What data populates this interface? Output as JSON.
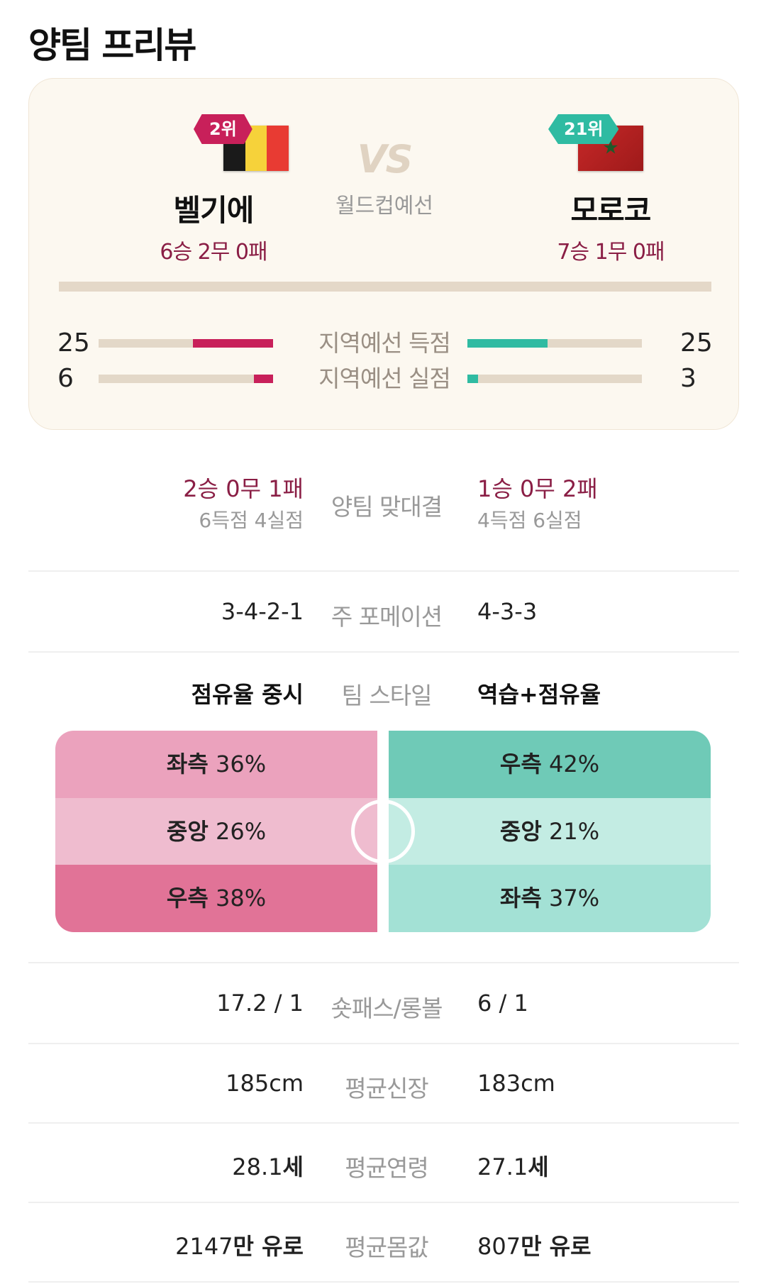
{
  "page_title": "양팀 프리뷰",
  "match_type": "월드컵예선",
  "vs_label": "VS",
  "left_team": {
    "name": "벨기에",
    "rank": "2위",
    "record": "6승 2무 0패",
    "flag_colors": [
      "#1a1a1a",
      "#f6d23a",
      "#e83b33"
    ]
  },
  "right_team": {
    "name": "모로코",
    "rank": "21위",
    "record": "7승 1무 0패",
    "flag_colors": [
      "#c62828",
      "#1f5a2a"
    ]
  },
  "qualifier_stats": [
    {
      "label": "지역예선 득점",
      "left": "25",
      "right": "25",
      "left_fraction": 0.46,
      "right_fraction": 0.46
    },
    {
      "label": "지역예선 실점",
      "left": "6",
      "right": "3",
      "left_fraction": 0.11,
      "right_fraction": 0.06
    }
  ],
  "head_to_head": {
    "label": "양팀 맞대결",
    "left_record": "2승 0무 1패",
    "left_goals": "6득점 4실점",
    "right_record": "1승 0무 2패",
    "right_goals": "4득점 6실점"
  },
  "formation": {
    "label": "주 포메이션",
    "left": "3-4-2-1",
    "right": "4-3-3"
  },
  "style": {
    "label": "팀 스타일",
    "left": "점유율 중시",
    "right": "역습+점유율"
  },
  "attack_zones": {
    "left": [
      {
        "name": "좌측",
        "pct": "36%"
      },
      {
        "name": "중앙",
        "pct": "26%"
      },
      {
        "name": "우측",
        "pct": "38%"
      }
    ],
    "right": [
      {
        "name": "우측",
        "pct": "42%"
      },
      {
        "name": "중앙",
        "pct": "21%"
      },
      {
        "name": "좌측",
        "pct": "37%"
      }
    ]
  },
  "rows": [
    {
      "label": "숏패스/롱볼",
      "left": "17.2 / 1",
      "right": "6 / 1"
    },
    {
      "label": "평균신장",
      "left": "185cm",
      "right": "183cm"
    },
    {
      "label": "평균연령",
      "left_num": "28.1",
      "left_unit": "세",
      "right_num": "27.1",
      "right_unit": "세"
    },
    {
      "label": "평균몸값",
      "left_num": "2147",
      "left_unit": "만 유로",
      "right_num": "807",
      "right_unit": "만 유로"
    }
  ]
}
